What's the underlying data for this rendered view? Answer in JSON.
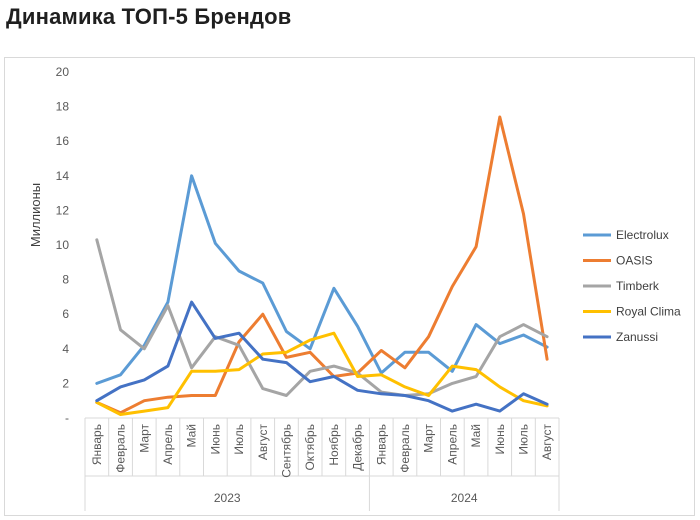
{
  "page": {
    "title": "Динамика ТОП-5 Брендов"
  },
  "chart_data": {
    "type": "line",
    "title": "Динамика ТОП-5 Брендов",
    "ylabel": "Миллионы",
    "xlabel": "",
    "ylim": [
      0,
      20
    ],
    "yticks": [
      0,
      2,
      4,
      6,
      8,
      10,
      12,
      14,
      16,
      18,
      20
    ],
    "ytick_labels": [
      "-",
      "2",
      "4",
      "6",
      "8",
      "10",
      "12",
      "14",
      "16",
      "18",
      "20"
    ],
    "grid": false,
    "legend_position": "right",
    "categories": [
      "Январь",
      "Февраль",
      "Март",
      "Апрель",
      "Май",
      "Июнь",
      "Июль",
      "Август",
      "Сентябрь",
      "Октябрь",
      "Ноябрь",
      "Декабрь",
      "Январь",
      "Февраль",
      "Март",
      "Апрель",
      "Май",
      "Июнь",
      "Июль",
      "Август"
    ],
    "groups": [
      {
        "label": "2023",
        "count": 12
      },
      {
        "label": "2024",
        "count": 8
      }
    ],
    "series": [
      {
        "name": "Electrolux",
        "color": "#5B9BD5",
        "values": [
          2.0,
          2.5,
          4.2,
          6.7,
          14.0,
          10.1,
          8.5,
          7.8,
          5.0,
          4.0,
          7.5,
          5.3,
          2.6,
          3.8,
          3.8,
          2.7,
          5.4,
          4.3,
          4.8,
          4.1
        ]
      },
      {
        "name": "OASIS",
        "color": "#ED7D31",
        "values": [
          0.9,
          0.3,
          1.0,
          1.2,
          1.3,
          1.3,
          4.4,
          6.0,
          3.5,
          3.8,
          2.4,
          2.6,
          3.9,
          2.9,
          4.7,
          7.6,
          9.9,
          17.4,
          11.8,
          3.4
        ]
      },
      {
        "name": "Timberk",
        "color": "#A5A5A5",
        "values": [
          10.3,
          5.1,
          4.0,
          6.5,
          2.9,
          4.7,
          4.2,
          1.7,
          1.3,
          2.7,
          3.0,
          2.6,
          1.5,
          1.3,
          1.4,
          2.0,
          2.4,
          4.7,
          5.4,
          4.7
        ]
      },
      {
        "name": "Royal Clima",
        "color": "#FFC000",
        "values": [
          0.9,
          0.2,
          0.4,
          0.6,
          2.7,
          2.7,
          2.8,
          3.7,
          3.8,
          4.5,
          4.9,
          2.4,
          2.5,
          1.8,
          1.3,
          3.0,
          2.8,
          1.8,
          1.0,
          0.7
        ]
      },
      {
        "name": "Zanussi",
        "color": "#4472C4",
        "values": [
          1.0,
          1.8,
          2.2,
          3.0,
          6.7,
          4.6,
          4.9,
          3.4,
          3.2,
          2.1,
          2.4,
          1.6,
          1.4,
          1.3,
          1.0,
          0.4,
          0.8,
          0.4,
          1.4,
          0.8
        ]
      }
    ]
  }
}
